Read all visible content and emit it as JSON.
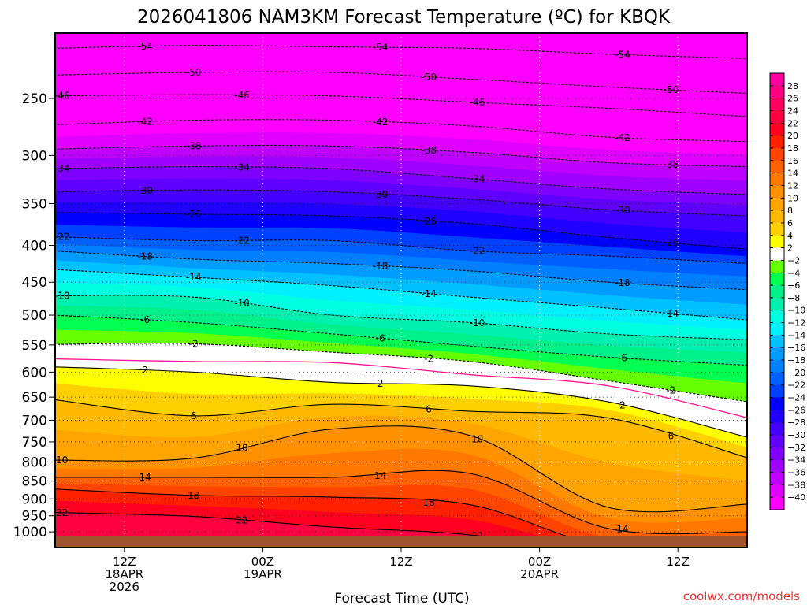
{
  "chart_data": {
    "type": "contour",
    "title": "2026041806 NAM3KM Forecast Temperature (ºC) for KBQK",
    "xlabel": "Forecast Time (UTC)",
    "ylabel": "",
    "credit": "coolwx.com/models",
    "x_unit": "forecast hour",
    "xlim": [
      0,
      60
    ],
    "ylim_hpa": [
      203,
      1040
    ],
    "y_ticks": [
      250,
      300,
      350,
      400,
      450,
      500,
      550,
      600,
      650,
      700,
      750,
      800,
      850,
      900,
      950,
      1000
    ],
    "x_ticks": [
      {
        "hour": 6,
        "lines": [
          "12Z",
          "18APR",
          "2026"
        ]
      },
      {
        "hour": 18,
        "lines": [
          "00Z",
          "19APR"
        ]
      },
      {
        "hour": 30,
        "lines": [
          "12Z"
        ]
      },
      {
        "hour": 42,
        "lines": [
          "00Z",
          "20APR"
        ]
      },
      {
        "hour": 54,
        "lines": [
          "12Z"
        ]
      }
    ],
    "times": [
      0,
      12,
      24,
      36,
      48,
      60
    ],
    "isotherms_hpa": {
      "-54": [
        213,
        211,
        212,
        213,
        217,
        220
      ],
      "-50": [
        232,
        230,
        230,
        235,
        241,
        246
      ],
      "-46": [
        248,
        247,
        248,
        253,
        258,
        265
      ],
      "-42": [
        272,
        268,
        268,
        273,
        283,
        287
      ],
      "-38": [
        294,
        291,
        291,
        297,
        307,
        311
      ],
      "-34": [
        313,
        311,
        313,
        323,
        334,
        340
      ],
      "-30": [
        337,
        335,
        337,
        345,
        357,
        364
      ],
      "-26": [
        360,
        362,
        364,
        373,
        390,
        405
      ],
      "-22": [
        389,
        394,
        394,
        407,
        414,
        424
      ],
      "-18": [
        407,
        418,
        424,
        434,
        450,
        461
      ],
      "-14": [
        432,
        443,
        455,
        472,
        489,
        508
      ],
      "-10": [
        470,
        472,
        500,
        512,
        531,
        541
      ],
      "-6": [
        500,
        512,
        531,
        552,
        572,
        587
      ],
      "-2": [
        549,
        548,
        563,
        580,
        617,
        660
      ],
      "0": [
        575,
        580,
        582,
        605,
        627,
        695
      ],
      "2": [
        590,
        600,
        620,
        627,
        660,
        740
      ],
      "6": [
        655,
        690,
        665,
        680,
        695,
        790
      ],
      "10": [
        795,
        790,
        720,
        735,
        925,
        915
      ],
      "14": [
        840,
        840,
        840,
        830,
        990,
        1000
      ],
      "18": [
        872,
        890,
        895,
        917,
        1050,
        1050
      ],
      "22": [
        940,
        952,
        985,
        1010,
        1080,
        1080
      ]
    },
    "colorbar": {
      "labels": [
        "28",
        "26",
        "24",
        "22",
        "20",
        "18",
        "16",
        "14",
        "12",
        "10",
        "8",
        "6",
        "4",
        "2",
        "-2",
        "-4",
        "-6",
        "-8",
        "-10",
        "-12",
        "-14",
        "-16",
        "-18",
        "-20",
        "-22",
        "-24",
        "-26",
        "-28",
        "-30",
        "-32",
        "-34",
        "-36",
        "-38",
        "-40"
      ],
      "colors_warm_to_cold": [
        "#ff00a0",
        "#ff0080",
        "#ff0060",
        "#ff0040",
        "#ff0020",
        "#ff2000",
        "#ff4400",
        "#ff6000",
        "#ff7800",
        "#ff9000",
        "#ffa400",
        "#ffb800",
        "#ffd000",
        "#ffff00",
        "#ffffff",
        "#66ff00",
        "#00ff50",
        "#00f08a",
        "#00f0b0",
        "#00ffe0",
        "#00f0ff",
        "#00c0ff",
        "#009cff",
        "#0080ff",
        "#0060ff",
        "#0040ff",
        "#0000ff",
        "#2000ff",
        "#4400ff",
        "#6000ff",
        "#8000ff",
        "#a000ff",
        "#c000ff",
        "#e000ff",
        "#ff00ff"
      ]
    },
    "ground_color": "#a0522d",
    "zero_line_color": "#ff1493"
  }
}
